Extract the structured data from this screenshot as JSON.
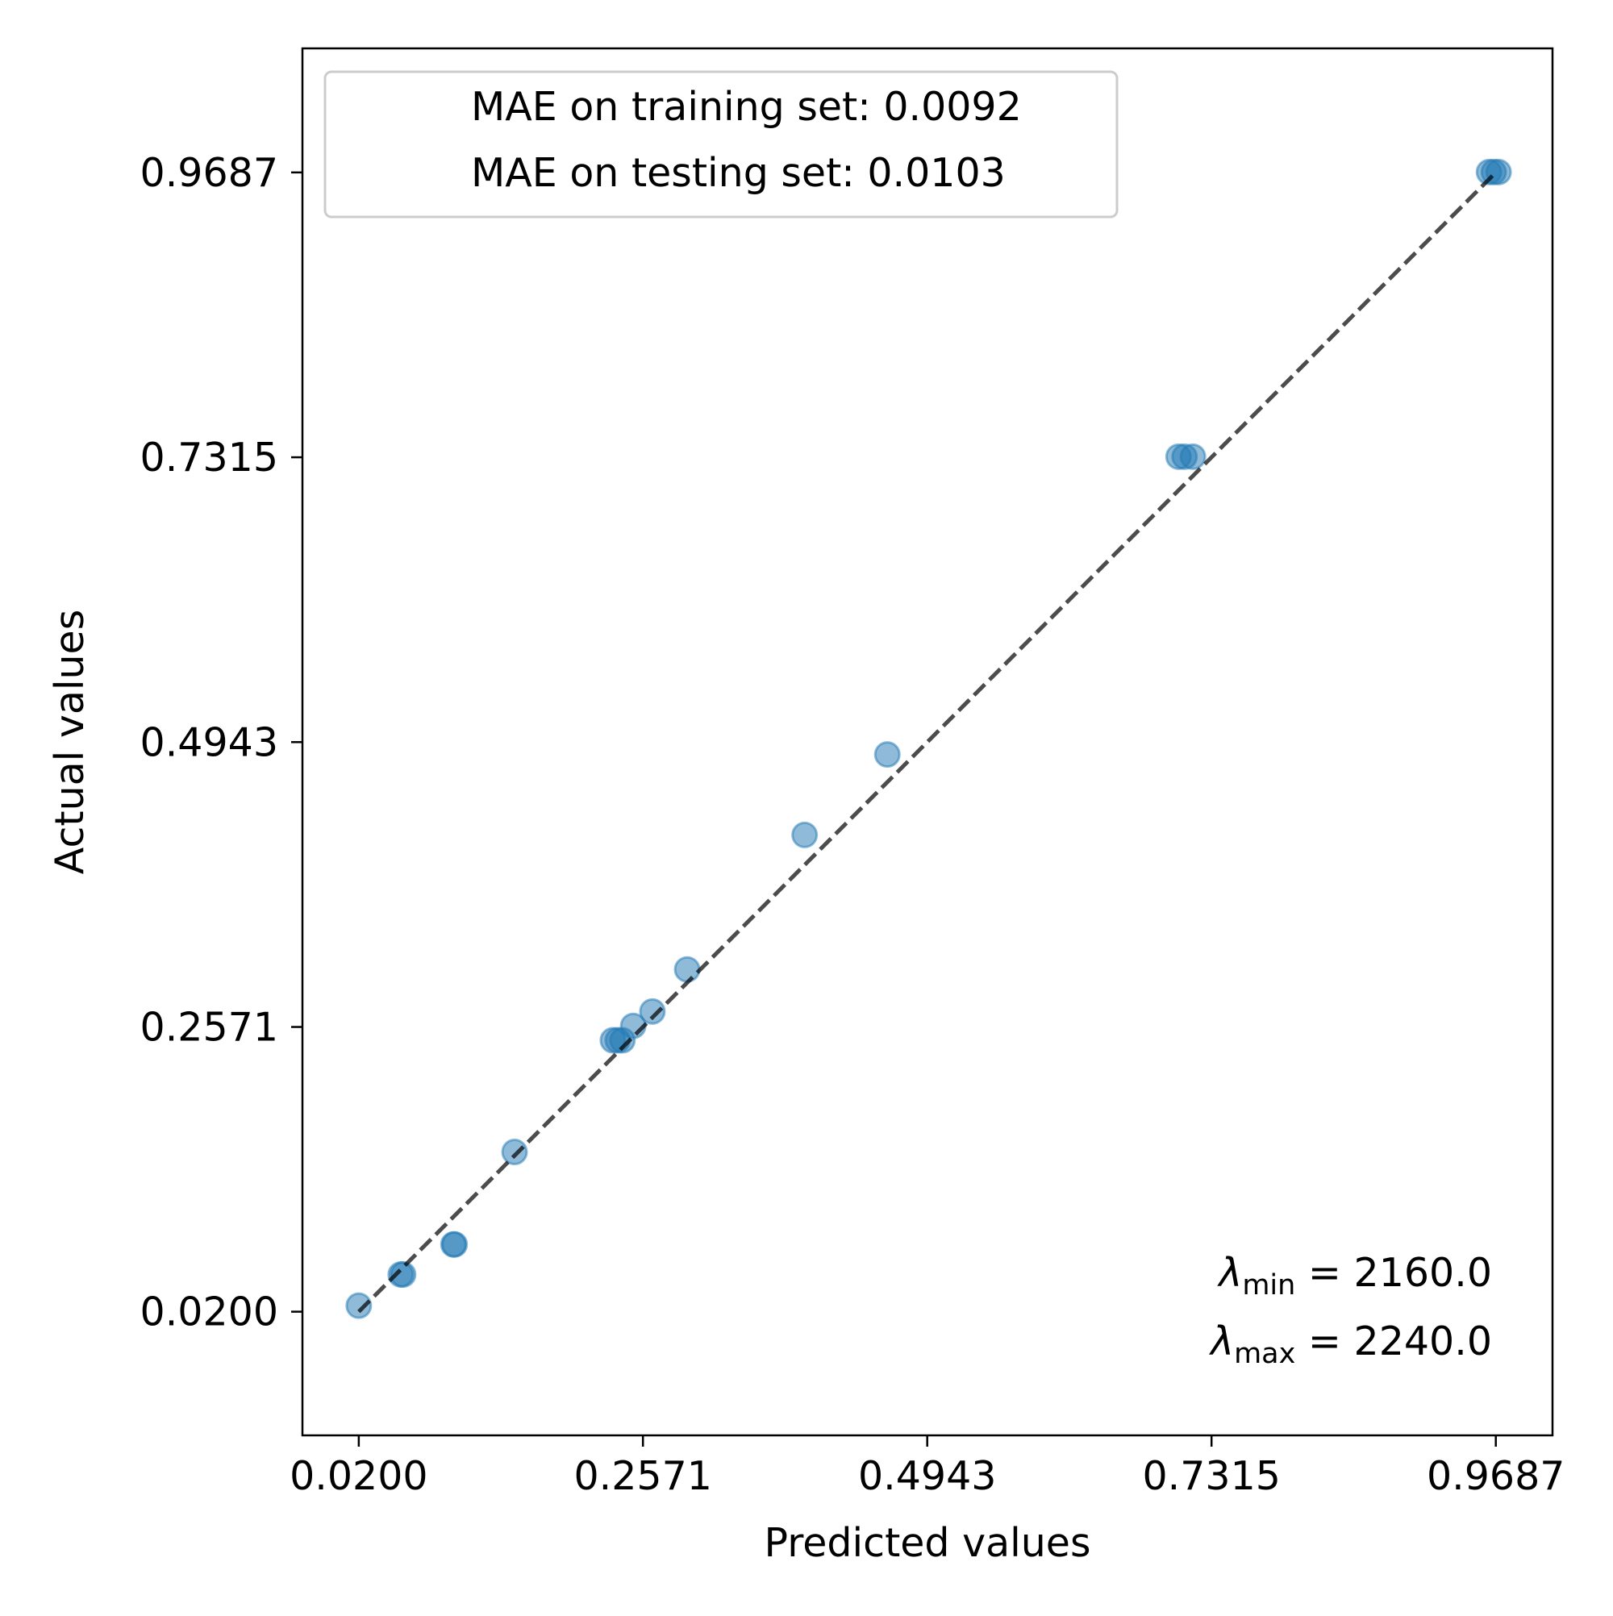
{
  "chart_data": {
    "type": "scatter",
    "xlabel": "Predicted values",
    "ylabel": "Actual values",
    "xlim": [
      -0.027,
      1.016
    ],
    "ylim": [
      -0.083,
      1.072
    ],
    "xticks": [
      "0.0200",
      "0.2571",
      "0.4943",
      "0.7315",
      "0.9687"
    ],
    "yticks": [
      "0.0200",
      "0.2571",
      "0.4943",
      "0.7315",
      "0.9687"
    ],
    "point_color": "#1f77b4",
    "line_color": "#000000",
    "legend_position": "upper left",
    "legend": [
      "MAE on training set: 0.0092",
      "MAE on testing set: 0.0103"
    ],
    "annotation": {
      "min_label": "λmin = 2160.0",
      "max_label": "λmax = 2240.0"
    },
    "reference_line": {
      "from": [
        0.02,
        0.02
      ],
      "to": [
        0.9687,
        0.9687
      ],
      "style": "dashed"
    },
    "points": [
      {
        "x": 0.02,
        "y": 0.025
      },
      {
        "x": 0.055,
        "y": 0.051
      },
      {
        "x": 0.057,
        "y": 0.051
      },
      {
        "x": 0.099,
        "y": 0.076
      },
      {
        "x": 0.1,
        "y": 0.076
      },
      {
        "x": 0.15,
        "y": 0.153
      },
      {
        "x": 0.232,
        "y": 0.246
      },
      {
        "x": 0.236,
        "y": 0.246
      },
      {
        "x": 0.24,
        "y": 0.246
      },
      {
        "x": 0.249,
        "y": 0.258
      },
      {
        "x": 0.265,
        "y": 0.27
      },
      {
        "x": 0.294,
        "y": 0.305
      },
      {
        "x": 0.392,
        "y": 0.417
      },
      {
        "x": 0.461,
        "y": 0.484
      },
      {
        "x": 0.704,
        "y": 0.732
      },
      {
        "x": 0.709,
        "y": 0.732
      },
      {
        "x": 0.716,
        "y": 0.732
      },
      {
        "x": 0.963,
        "y": 0.969
      },
      {
        "x": 0.967,
        "y": 0.969
      },
      {
        "x": 0.971,
        "y": 0.969
      }
    ]
  }
}
